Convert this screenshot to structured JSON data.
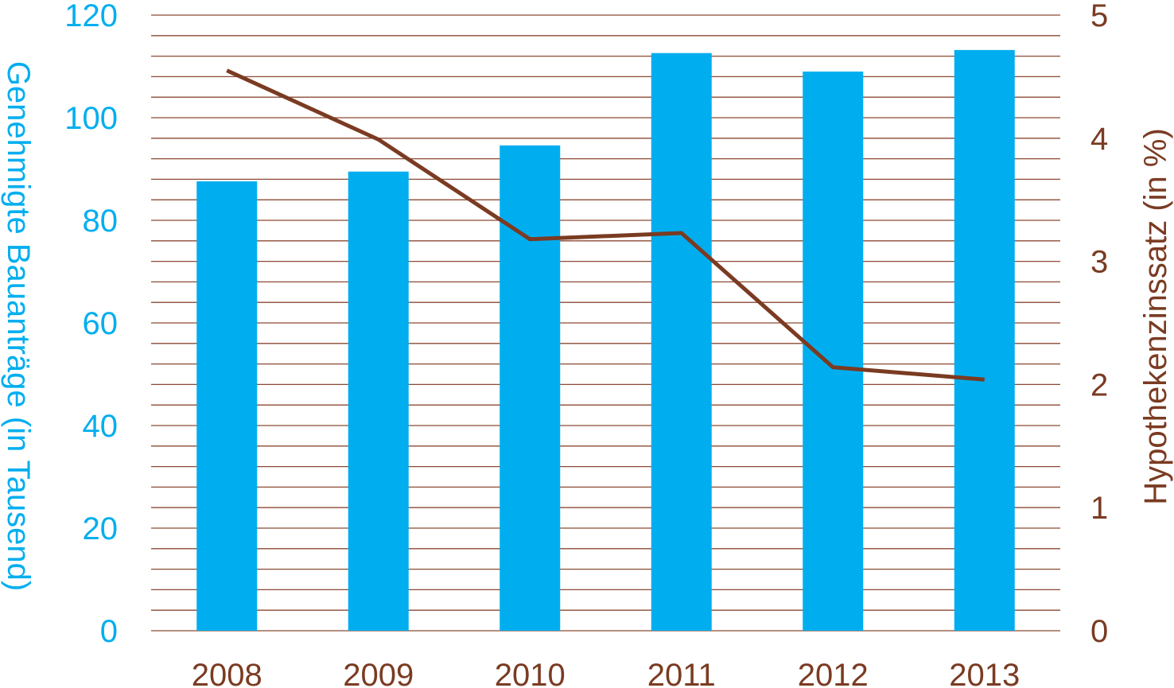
{
  "chart_data": {
    "type": "bar+line",
    "categories": [
      "2008",
      "2009",
      "2010",
      "2011",
      "2012",
      "2013"
    ],
    "series": [
      {
        "kind": "bar",
        "axis": "left",
        "values": [
          87.6,
          89.5,
          94.6,
          112.6,
          109.0,
          113.2
        ]
      },
      {
        "kind": "line",
        "axis": "right",
        "values": [
          4.55,
          3.99,
          3.18,
          3.23,
          2.14,
          2.04
        ]
      }
    ],
    "ylabel": "Genehmigte Bauanträge (in Tausend)",
    "y2label": "Hypothekenzinssatz (in %)",
    "ylim": [
      0,
      120
    ],
    "y2lim": [
      0,
      5
    ],
    "yticks": [
      "0",
      "20",
      "40",
      "60",
      "80",
      "100",
      "120"
    ],
    "y2ticks": [
      "0",
      "1",
      "2",
      "3",
      "4",
      "5"
    ],
    "grid": true,
    "grid_step_left": 4,
    "colors": {
      "bar": "#00AEEF",
      "line": "#7A3B22",
      "grid": "#8B4A33",
      "left_text": "#00AEEF",
      "right_text": "#7A3B22"
    }
  }
}
